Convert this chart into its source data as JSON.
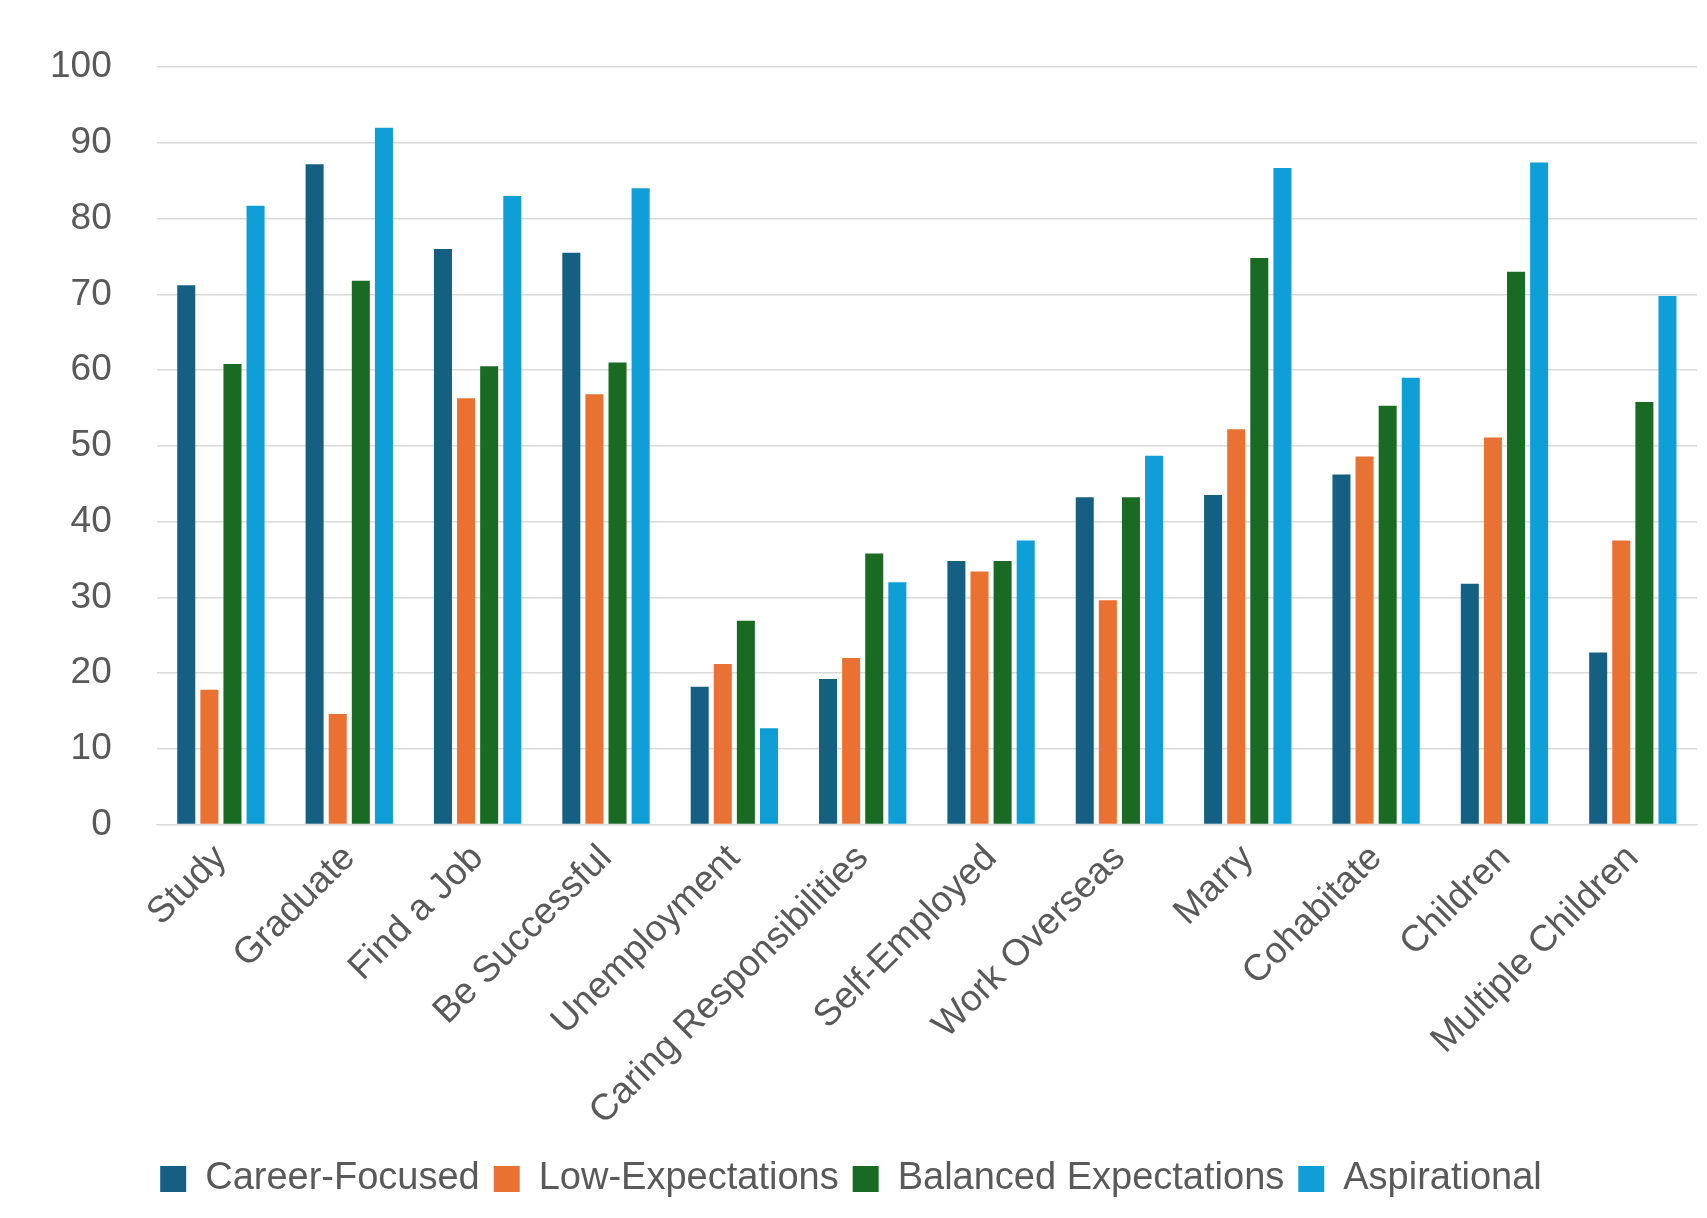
{
  "chart_data": {
    "type": "bar",
    "categories": [
      "Study",
      "Graduate",
      "Find a Job",
      "Be Successful",
      "Unemployment",
      "Caring Responsibilities",
      "Self-Employed",
      "Work Overseas",
      "Marry",
      "Cohabitate",
      "Children",
      "Multiple Children"
    ],
    "series": [
      {
        "name": "Career-Focused",
        "color": "#156082",
        "values": [
          71.2,
          87.2,
          76,
          75.5,
          18.2,
          19.2,
          34.8,
          43.2,
          43.5,
          46.2,
          31.8,
          22.7
        ]
      },
      {
        "name": "Low-Expectations",
        "color": "#e97132",
        "values": [
          17.8,
          14.6,
          56.3,
          56.8,
          21.2,
          22,
          33.4,
          29.6,
          52.2,
          48.6,
          51.1,
          37.5
        ]
      },
      {
        "name": "Balanced Expectations",
        "color": "#196b24",
        "values": [
          60.8,
          71.8,
          60.5,
          61,
          26.9,
          35.8,
          34.8,
          43.2,
          74.8,
          55.3,
          73,
          55.8
        ]
      },
      {
        "name": "Aspirational",
        "color": "#0f9ed5",
        "values": [
          81.7,
          92,
          83,
          84,
          12.7,
          32,
          37.5,
          48.7,
          86.7,
          59,
          87.4,
          69.8
        ]
      }
    ],
    "ylim": [
      0,
      100
    ],
    "yticks": [
      0,
      10,
      20,
      30,
      40,
      50,
      60,
      70,
      80,
      90,
      100
    ],
    "grid": "y",
    "legend": "bottom"
  }
}
